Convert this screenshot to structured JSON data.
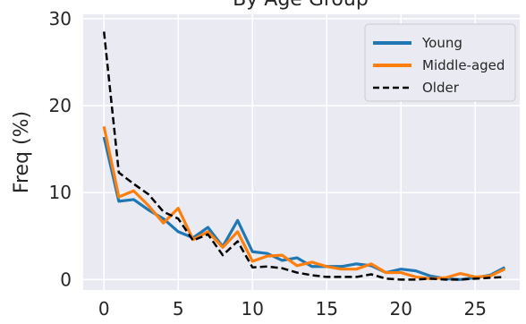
{
  "chart_data": {
    "type": "line",
    "title": "By Age Group",
    "xlabel": "",
    "ylabel": "Freq (%)",
    "xlim": [
      -1.4,
      28.0
    ],
    "ylim": [
      -1.2,
      30.5
    ],
    "xticks": [
      0,
      5,
      10,
      15,
      20,
      25
    ],
    "yticks": [
      0,
      10,
      20,
      30
    ],
    "grid": true,
    "legend_position": "top-right",
    "x": [
      0,
      1,
      2,
      3,
      4,
      5,
      6,
      7,
      8,
      9,
      10,
      11,
      12,
      13,
      14,
      15,
      16,
      17,
      18,
      19,
      20,
      21,
      22,
      23,
      24,
      25,
      26,
      27
    ],
    "series": [
      {
        "name": "Young",
        "color": "#1f77b4",
        "style": "solid",
        "values": [
          16.4,
          9.0,
          9.2,
          8.0,
          7.0,
          5.5,
          4.8,
          6.0,
          3.8,
          6.8,
          3.2,
          3.0,
          2.2,
          2.5,
          1.5,
          1.5,
          1.5,
          1.8,
          1.6,
          0.8,
          1.2,
          1.0,
          0.4,
          0.1,
          0.0,
          0.2,
          0.5,
          1.4
        ]
      },
      {
        "name": "Middle-aged",
        "color": "#ff7f0e",
        "style": "solid",
        "values": [
          17.6,
          9.5,
          10.2,
          8.5,
          6.5,
          8.2,
          4.6,
          5.5,
          3.7,
          5.5,
          2.1,
          2.7,
          2.8,
          1.6,
          2.0,
          1.5,
          1.2,
          1.2,
          1.8,
          0.8,
          0.8,
          0.3,
          0.1,
          0.2,
          0.7,
          0.3,
          0.4,
          1.2
        ]
      },
      {
        "name": "Older",
        "color": "#000000",
        "style": "dashed",
        "values": [
          28.5,
          12.3,
          11.0,
          9.8,
          7.8,
          7.0,
          4.5,
          5.2,
          2.8,
          4.4,
          1.4,
          1.5,
          1.3,
          0.8,
          0.5,
          0.3,
          0.3,
          0.3,
          0.6,
          0.1,
          0.0,
          0.0,
          0.1,
          0.0,
          0.0,
          0.1,
          0.2,
          0.3
        ]
      }
    ]
  }
}
